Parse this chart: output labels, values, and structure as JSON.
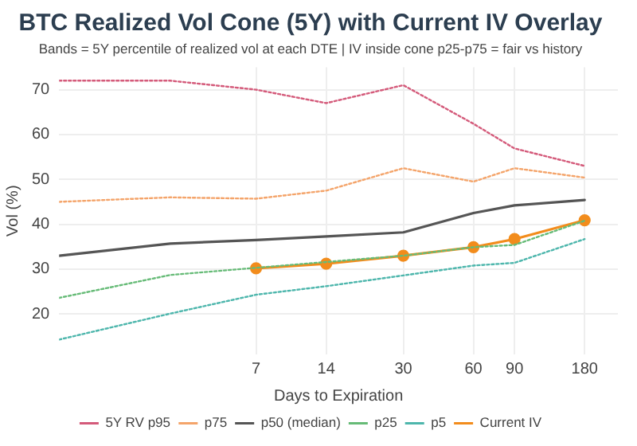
{
  "chart_data": {
    "type": "line",
    "title": "BTC Realized Vol Cone (5Y) with Current IV Overlay",
    "subtitle": "Bands = 5Y percentile of realized vol at each DTE | IV inside cone p25-p75 = fair vs history",
    "xlabel": "Days to Expiration",
    "ylabel": "Vol (%)",
    "log": "x",
    "xlim": [
      1,
      250
    ],
    "xticks": [
      7,
      14,
      30,
      60,
      90,
      180
    ],
    "ylim": [
      11,
      75
    ],
    "yticks": [
      20,
      30,
      40,
      50,
      60,
      70
    ],
    "grid": true,
    "legend": "bottom",
    "series": [
      {
        "name": "5Y RV p95",
        "color": "#d45a7a",
        "line_style": "dotted",
        "marker": "none",
        "x": [
          1,
          3,
          7,
          14,
          30,
          60,
          90,
          180
        ],
        "values": [
          72,
          72,
          70,
          67,
          71,
          62.4,
          56.9,
          53
        ]
      },
      {
        "name": "p75",
        "color": "#f4a46a",
        "line_style": "dotted",
        "marker": "none",
        "x": [
          1,
          3,
          7,
          14,
          30,
          60,
          90,
          180
        ],
        "values": [
          45,
          46,
          45.7,
          47.5,
          52.5,
          49.5,
          52.5,
          50.4
        ]
      },
      {
        "name": "p50 (median)",
        "color": "#555555",
        "line_style": "solid",
        "marker": "none",
        "x": [
          1,
          3,
          7,
          14,
          30,
          60,
          90,
          180
        ],
        "values": [
          33,
          35.7,
          36.5,
          37.3,
          38.2,
          42.5,
          44.2,
          45.4
        ]
      },
      {
        "name": "p25",
        "color": "#66bb77",
        "line_style": "dotted",
        "marker": "none",
        "x": [
          1,
          3,
          7,
          14,
          30,
          60,
          90,
          180
        ],
        "values": [
          23.6,
          28.7,
          30.3,
          31.6,
          33,
          34.9,
          35.4,
          40.8
        ]
      },
      {
        "name": "p5",
        "color": "#4db6ac",
        "line_style": "dotted",
        "marker": "none",
        "x": [
          1,
          3,
          7,
          14,
          30,
          60,
          90,
          180
        ],
        "values": [
          14.3,
          20.1,
          24.3,
          26.2,
          28.6,
          30.8,
          31.4,
          36.7
        ]
      },
      {
        "name": "Current IV",
        "color": "#f28c1c",
        "line_style": "solid",
        "marker": "circle",
        "x": [
          7,
          14,
          30,
          60,
          90,
          180
        ],
        "values": [
          30.2,
          31.2,
          33,
          34.9,
          36.7,
          40.9
        ]
      }
    ]
  }
}
